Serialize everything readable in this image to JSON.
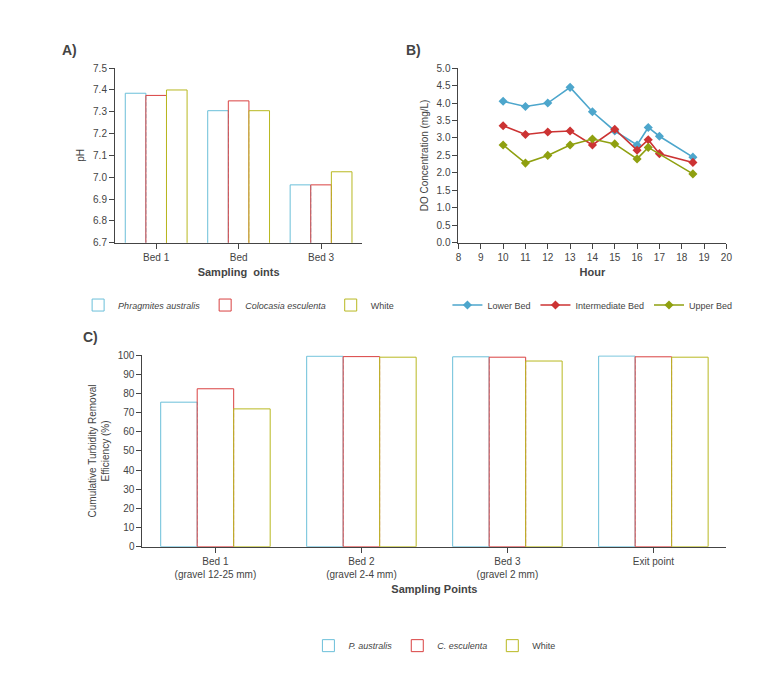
{
  "chart_data": [
    {
      "type": "bar",
      "title": "A)",
      "categories": [
        "Bed 1",
        "Bed",
        "Bed 3"
      ],
      "series": [
        {
          "name": "Phragmites australis",
          "color": "#6bbfd9",
          "values": [
            7.385,
            7.305,
            6.965
          ]
        },
        {
          "name": "Colocasia esculenta",
          "color": "#d94040",
          "values": [
            7.375,
            7.35,
            6.965
          ]
        },
        {
          "name": "White",
          "color": "#b8b820",
          "values": [
            7.4,
            7.305,
            7.025
          ]
        }
      ],
      "xlabel": "Sampling  oints",
      "ylabel": "pH",
      "ylim": [
        6.7,
        7.5
      ],
      "yticks": [
        6.7,
        6.8,
        6.9,
        {
          "value": 7.0,
          "label": "7.0"
        },
        7.1,
        7.2,
        7.3,
        7.4,
        7.5
      ],
      "grid": false
    },
    {
      "type": "line",
      "title": "B)",
      "x": [
        10,
        11,
        12,
        13,
        14,
        15,
        16,
        16.5,
        17,
        18.5
      ],
      "series": [
        {
          "name": "Lower Bed",
          "color": "#4da6cc",
          "marker": "diamond",
          "values": [
            4.05,
            3.9,
            4.0,
            4.45,
            3.75,
            3.2,
            2.8,
            3.3,
            3.05,
            2.45
          ]
        },
        {
          "name": "Intermediate Bed",
          "color": "#cc3333",
          "marker": "diamond",
          "values": [
            3.35,
            3.1,
            3.17,
            3.2,
            2.8,
            3.25,
            2.65,
            2.95,
            2.55,
            2.3
          ]
        },
        {
          "name": "Upper Bed",
          "color": "#8fa010",
          "marker": "diamond",
          "values": [
            2.8,
            2.28,
            2.5,
            2.8,
            2.97,
            2.83,
            2.4,
            2.73,
            null,
            1.97
          ]
        }
      ],
      "xlabel": "Hour",
      "ylabel": "DO Concentration (mg/L)",
      "xlim": [
        8,
        20
      ],
      "xticks": [
        8,
        9,
        10,
        11,
        12,
        13,
        14,
        15,
        16,
        17,
        18,
        19,
        20
      ],
      "ylim": [
        0,
        5
      ],
      "yticks": [
        {
          "value": 0,
          "label": "0.0"
        },
        0.5,
        {
          "value": 1.0,
          "label": "1.0"
        },
        1.5,
        {
          "value": 2.0,
          "label": "2.0"
        },
        2.5,
        {
          "value": 3.0,
          "label": "3.0"
        },
        3.5,
        {
          "value": 4.0,
          "label": "4.0"
        },
        4.5,
        {
          "value": 5.0,
          "label": "5.0"
        }
      ],
      "grid": false
    },
    {
      "type": "bar",
      "title": "C)",
      "categories": [
        "Bed 1\n(gravel 12-25 mm)",
        "Bed 2\n(gravel 2-4 mm)",
        "Bed 3\n(gravel 2 mm)",
        "Exit point"
      ],
      "series": [
        {
          "name": "P. australis",
          "color": "#6bbfd9",
          "values": [
            75.5,
            99.5,
            99.2,
            99.6
          ]
        },
        {
          "name": "C. esculenta",
          "color": "#d94040",
          "values": [
            82.5,
            99.3,
            99.0,
            99.2
          ]
        },
        {
          "name": "White",
          "color": "#b8b820",
          "values": [
            72.0,
            99.0,
            97.0,
            99.0
          ]
        }
      ],
      "xlabel": "Sampling Points",
      "ylabel": "Cumulative Turbidity Removal\nEfficiency (%)",
      "ylim": [
        0,
        100
      ],
      "yticks": [
        0,
        10,
        20,
        30,
        40,
        50,
        60,
        70,
        80,
        90,
        100
      ],
      "grid": false
    }
  ]
}
